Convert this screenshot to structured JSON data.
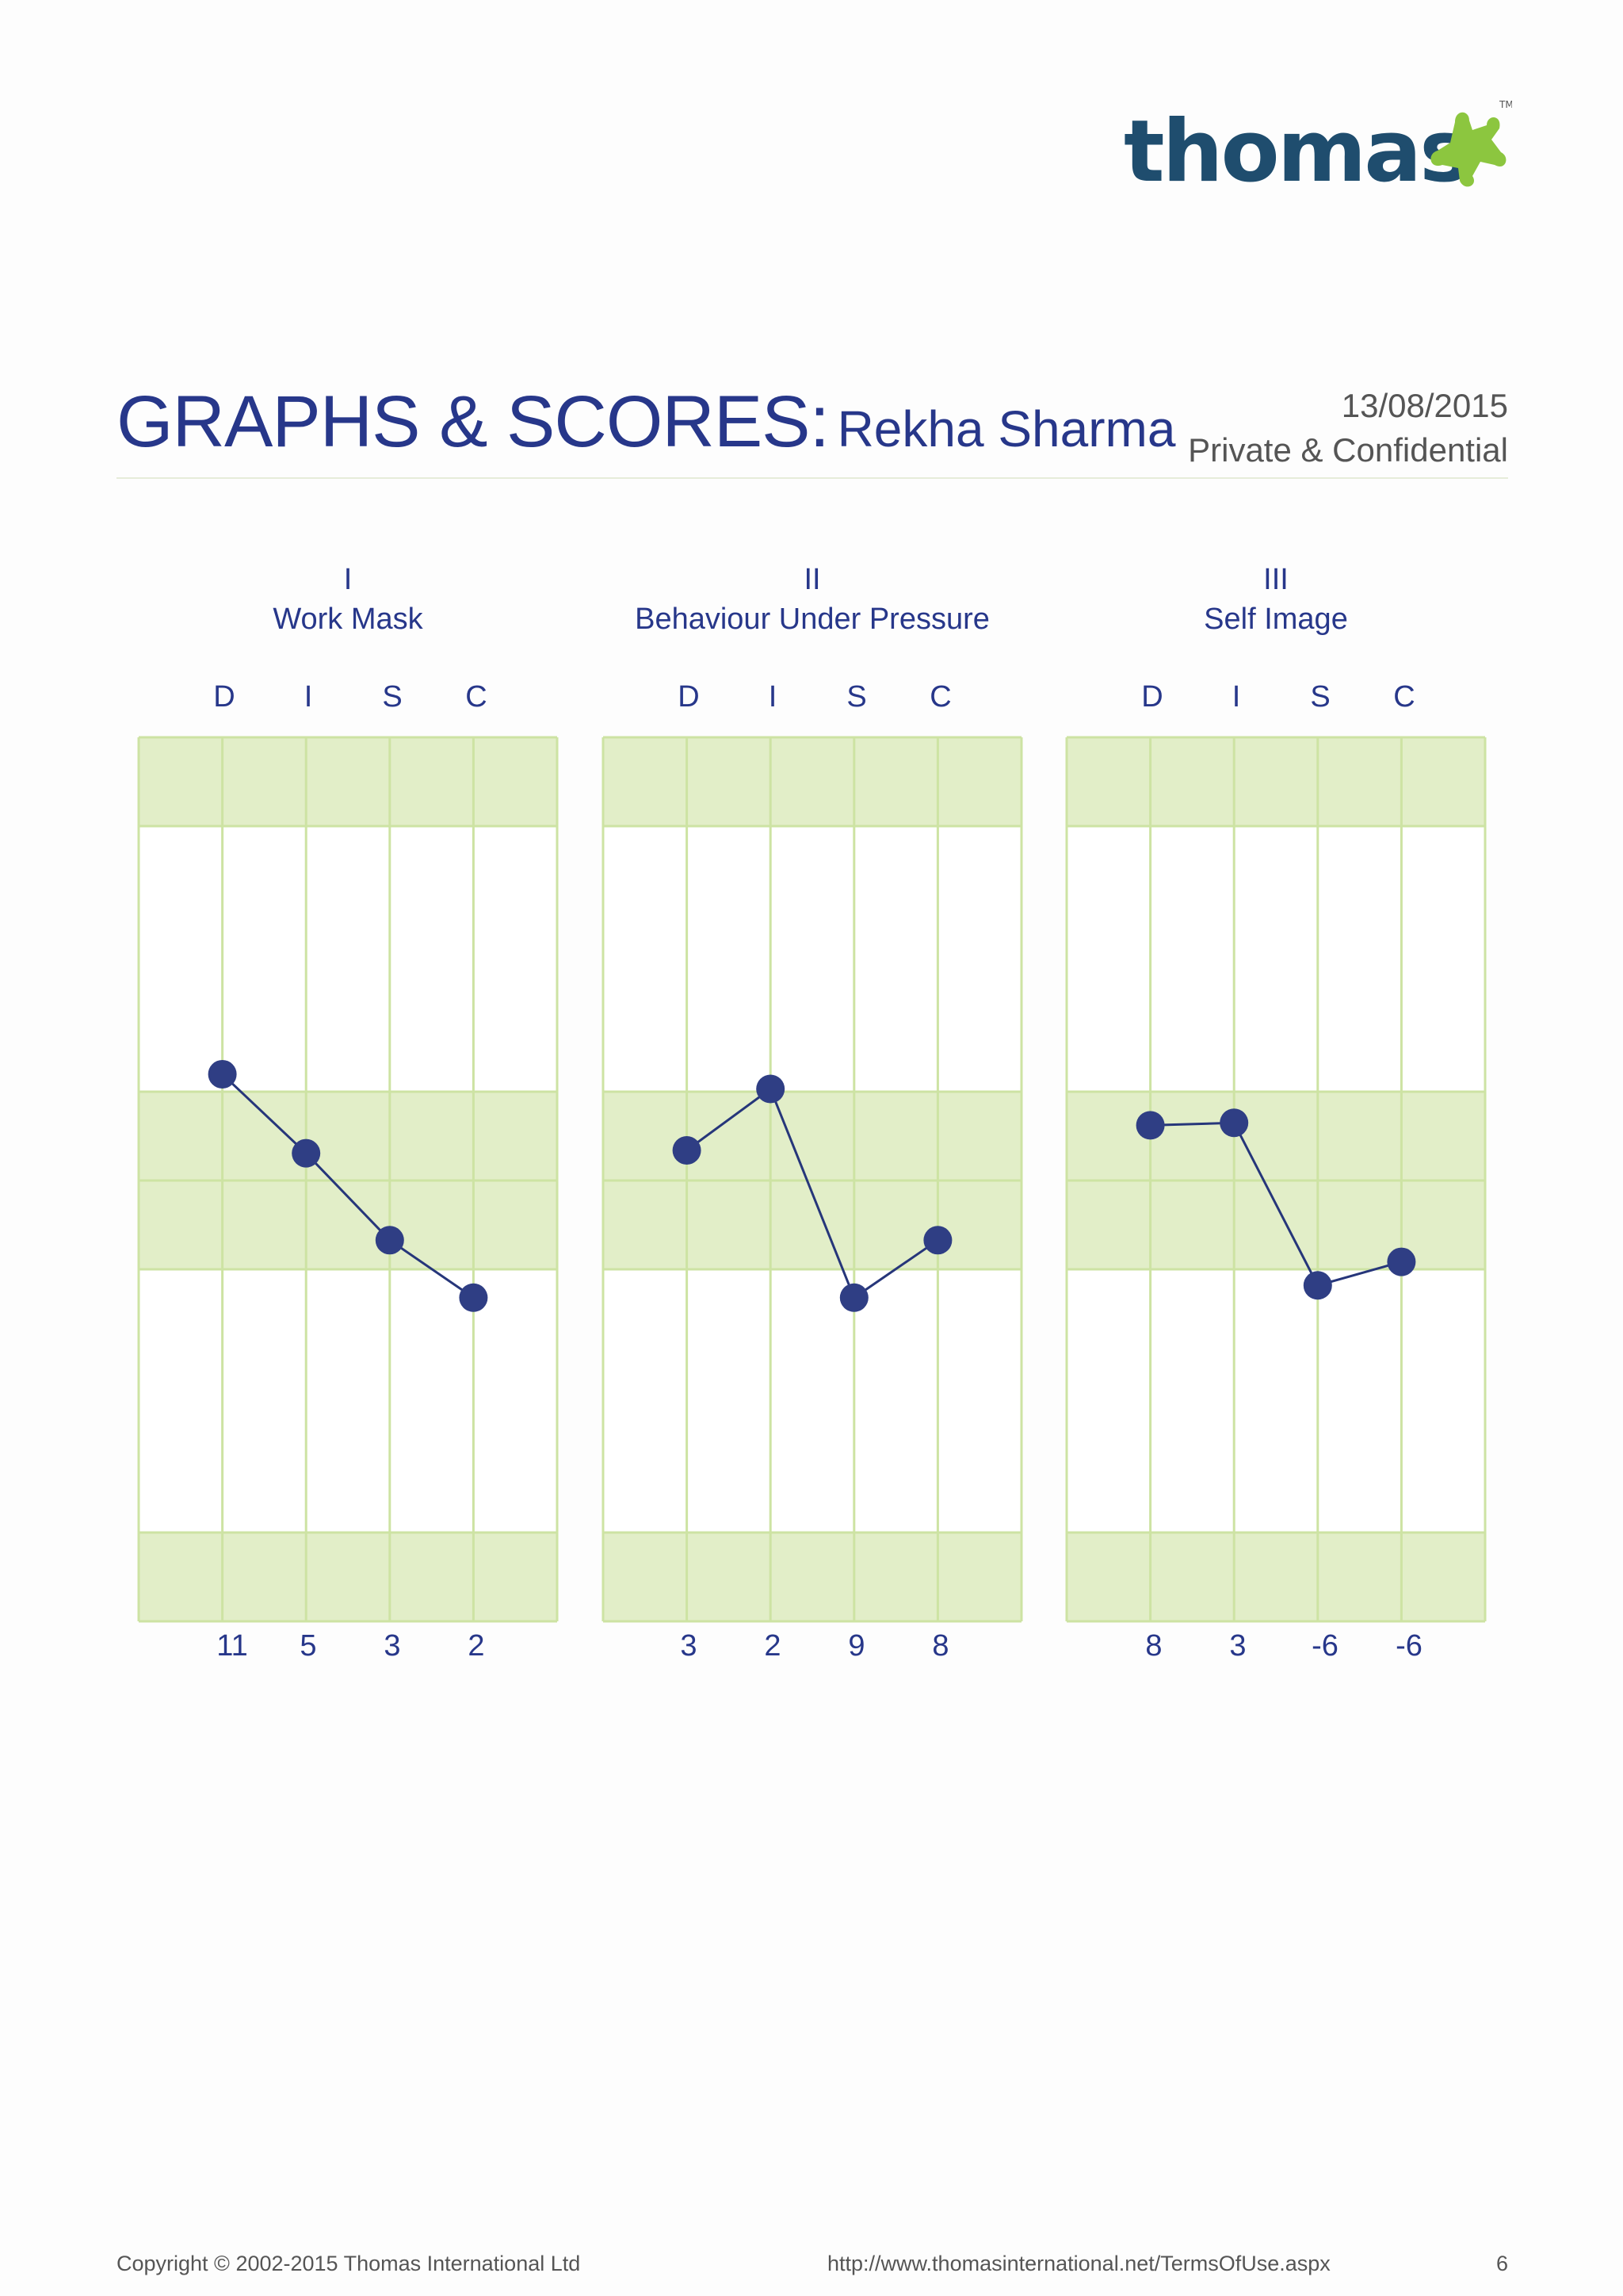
{
  "brand": {
    "logo_text": "thomas",
    "trademark": "TM",
    "accent": "#8cc63f",
    "primary": "#1f4d6e"
  },
  "header": {
    "title": "GRAPHS & SCORES:",
    "candidate": "Rekha Sharma",
    "date": "13/08/2015",
    "confidentiality": "Private & Confidential"
  },
  "colors": {
    "band": "#e2eec8",
    "grid": "#cde3a3",
    "line": "#26367a",
    "marker": "#2f3e84"
  },
  "chart_data": [
    {
      "type": "line",
      "numeral": "I",
      "title": "Work Mask",
      "categories": [
        "D",
        "I",
        "S",
        "C"
      ],
      "scores": [
        "11",
        "5",
        "3",
        "2"
      ],
      "values": [
        61.4,
        45.3,
        27.6,
        15.9
      ],
      "ylim": [
        -50,
        130
      ],
      "grid": true,
      "legend": "none"
    },
    {
      "type": "line",
      "numeral": "II",
      "title": "Behaviour Under Pressure",
      "categories": [
        "D",
        "I",
        "S",
        "C"
      ],
      "scores": [
        "3",
        "2",
        "9",
        "8"
      ],
      "values": [
        45.9,
        58.4,
        15.9,
        27.6
      ],
      "ylim": [
        -50,
        130
      ],
      "grid": true,
      "legend": "none"
    },
    {
      "type": "line",
      "numeral": "III",
      "title": "Self Image",
      "categories": [
        "D",
        "I",
        "S",
        "C"
      ],
      "scores": [
        "8",
        "3",
        "-6",
        "-6"
      ],
      "values": [
        51.0,
        51.5,
        18.4,
        23.2
      ],
      "ylim": [
        -50,
        130
      ],
      "grid": true,
      "legend": "none"
    }
  ],
  "footer": {
    "copyright": "Copyright © 2002-2015 Thomas International Ltd",
    "url": "http://www.thomasinternational.net/TermsOfUse.aspx",
    "page": "6"
  }
}
